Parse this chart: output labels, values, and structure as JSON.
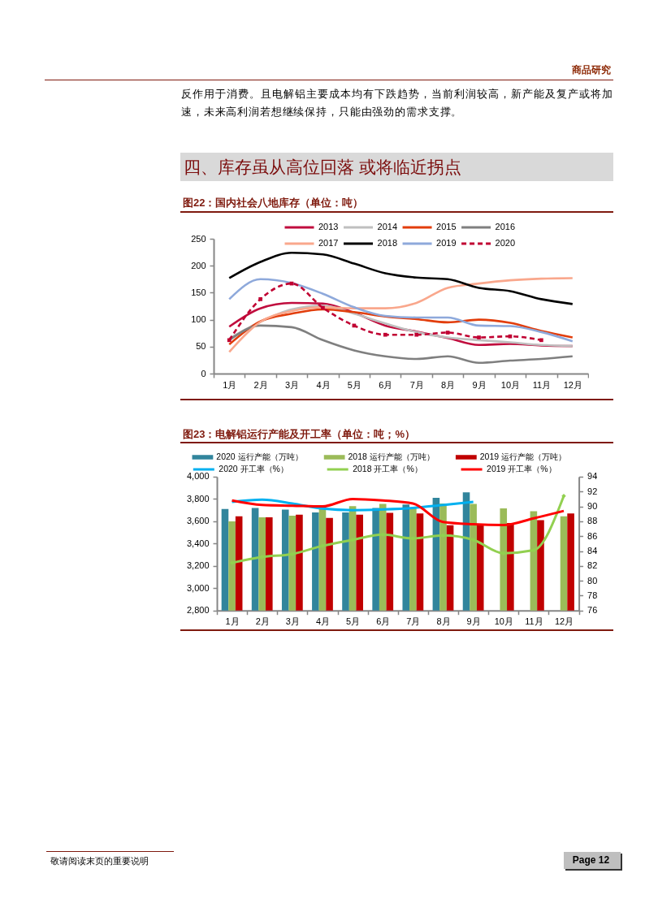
{
  "chart_data": [
    {
      "type": "line",
      "title": "图22：国内社会八地库存（单位：吨）",
      "annotations": [
        "商品研究",
        "反作用于消费。且电解铝主要成本均有下跌趋势，当前利润较高，新产能及复产或将加速，未来高利润若想继续保持，只能由强劲的需求支撑。",
        "四、库存虽从高位回落 或将临近拐点"
      ],
      "categories": [
        "1月",
        "2月",
        "3月",
        "4月",
        "5月",
        "6月",
        "7月",
        "8月",
        "9月",
        "10月",
        "11月",
        "12月"
      ],
      "series": [
        {
          "name": "2013",
          "color": "#c00d3e",
          "values": [
            87,
            121,
            131,
            130,
            113,
            89,
            78,
            66,
            53,
            55,
            52,
            51
          ]
        },
        {
          "name": "2014",
          "color": "#bfbfbf",
          "values": [
            65,
            96,
            119,
            126,
            111,
            93,
            77,
            67,
            62,
            58,
            53,
            51
          ]
        },
        {
          "name": "2015",
          "color": "#e23d0b",
          "values": [
            54,
            97,
            111,
            119,
            114,
            106,
            101,
            95,
            100,
            94,
            79,
            67
          ]
        },
        {
          "name": "2016",
          "color": "#7f7f7f",
          "values": [
            62,
            89,
            86,
            62,
            43,
            32,
            27,
            32,
            20,
            24,
            27,
            32
          ]
        },
        {
          "name": "2017",
          "color": "#f9a78c",
          "values": [
            40,
            96,
            116,
            123,
            121,
            121,
            131,
            159,
            167,
            173,
            176,
            177
          ]
        },
        {
          "name": "2018",
          "color": "#000000",
          "values": [
            177,
            207,
            224,
            221,
            204,
            186,
            178,
            175,
            159,
            153,
            138,
            129
          ]
        },
        {
          "name": "2019",
          "color": "#8ea9db",
          "values": [
            138,
            175,
            168,
            148,
            123,
            107,
            104,
            104,
            89,
            88,
            77,
            60
          ]
        },
        {
          "name": "2020",
          "color": "#c00032",
          "line_style": "dashed",
          "marker": "square",
          "values": [
            62,
            138,
            167,
            122,
            89,
            72,
            72,
            76,
            67,
            69,
            62,
            null
          ]
        }
      ],
      "ylim": [
        0,
        250
      ],
      "yticks": [
        0,
        50,
        100,
        150,
        200,
        250
      ],
      "legend": "top",
      "line_style": "solid"
    },
    {
      "type": "bar",
      "title": "图23：电解铝运行产能及开工率（单位：吨；%）",
      "annotations": [
        "敬请阅读末页的重要说明",
        "Page 12"
      ],
      "categories": [
        "1月",
        "2月",
        "3月",
        "4月",
        "5月",
        "6月",
        "7月",
        "8月",
        "9月",
        "10月",
        "11月",
        "12月"
      ],
      "series": [
        {
          "name": "2020 运行产能（万吨）",
          "color": "#31859c",
          "values": [
            3710,
            3720,
            3705,
            3680,
            3680,
            3720,
            3750,
            3810,
            3860,
            null,
            null,
            null
          ]
        },
        {
          "name": "2018 运行产能（万吨）",
          "color": "#9bbb59",
          "values": [
            3600,
            3635,
            3650,
            3715,
            3735,
            3755,
            3720,
            3760,
            3755,
            3715,
            3690,
            3645
          ]
        },
        {
          "name": "2019 运行产能（万吨）",
          "color": "#c00000",
          "values": [
            3645,
            3635,
            3660,
            3630,
            3660,
            3675,
            3670,
            3565,
            3565,
            3585,
            3610,
            3670
          ]
        },
        {
          "name": "2020 开工率（%）",
          "type": "line",
          "axis": "y2",
          "color": "#00b0f0",
          "values": [
            90.6,
            90.9,
            90.4,
            89.7,
            89.5,
            89.6,
            89.8,
            90.2,
            90.6,
            null,
            null,
            null
          ]
        },
        {
          "name": "2018 开工率（%）",
          "type": "line",
          "axis": "y2",
          "color": "#92d050",
          "marker": "diamond",
          "values": [
            82.4,
            83.2,
            83.6,
            84.7,
            85.5,
            86.2,
            85.7,
            86.1,
            85.5,
            83.7,
            84.1,
            91.4
          ]
        },
        {
          "name": "2019 开工率（%）",
          "type": "line",
          "axis": "y2",
          "color": "#ff0000",
          "values": [
            90.8,
            90.2,
            90.1,
            90.0,
            91.0,
            90.8,
            90.4,
            87.9,
            87.6,
            87.5,
            88.4,
            89.4
          ]
        }
      ],
      "ylim": [
        2800,
        4000
      ],
      "yticks": [
        {
          "value": 2800,
          "label": "2,800"
        },
        {
          "value": 3000,
          "label": "3,000"
        },
        {
          "value": 3200,
          "label": "3,200"
        },
        {
          "value": 3400,
          "label": "3,400"
        },
        {
          "value": 3600,
          "label": "3,600"
        },
        {
          "value": 3800,
          "label": "3,800"
        },
        {
          "value": 4000,
          "label": "4,000"
        }
      ],
      "y2lim": [
        76,
        94
      ],
      "y2ticks": [
        76,
        78,
        80,
        82,
        84,
        86,
        88,
        90,
        92,
        94
      ],
      "legend": "top",
      "line_style": "solid"
    }
  ]
}
